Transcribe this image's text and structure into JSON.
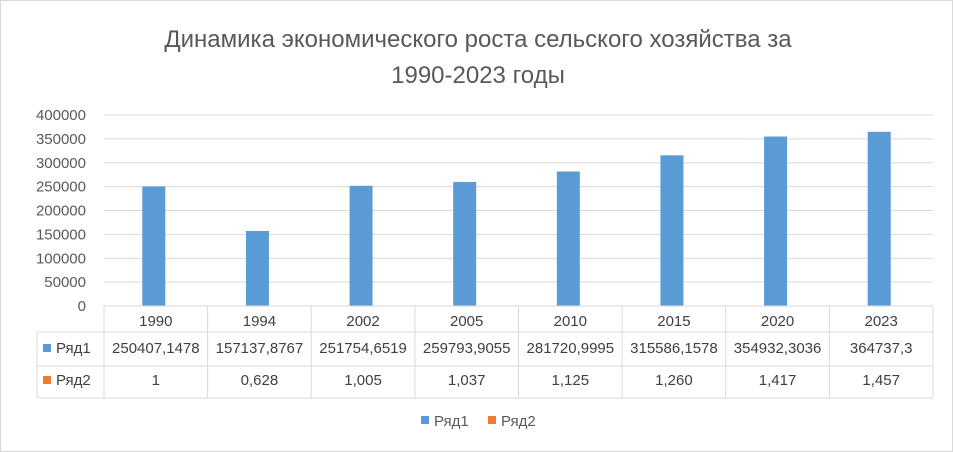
{
  "chart_data": {
    "type": "bar",
    "title": "Динамика экономического роста сельского хозяйства за 1990-2023 годы",
    "title_lines": [
      "Динамика экономического роста сельского хозяйства за",
      "1990-2023 годы"
    ],
    "categories": [
      "1990",
      "1994",
      "2002",
      "2005",
      "2010",
      "2015",
      "2020",
      "2023"
    ],
    "series": [
      {
        "name": "Ряд1",
        "color": "#5b9bd5",
        "values": [
          250407.1478,
          157137.8767,
          251754.6519,
          259793.9055,
          281720.9995,
          315586.1578,
          354932.3036,
          364737.3
        ],
        "labels": [
          "250407,1478",
          "157137,8767",
          "251754,6519",
          "259793,9055",
          "281720,9995",
          "315586,1578",
          "354932,3036",
          "364737,3"
        ]
      },
      {
        "name": "Ряд2",
        "color": "#ed7d31",
        "values": [
          1,
          0.628,
          1.005,
          1.037,
          1.125,
          1.26,
          1.417,
          1.457
        ],
        "labels": [
          "1",
          "0,628",
          "1,005",
          "1,037",
          "1,125",
          "1,260",
          "1,417",
          "1,457"
        ]
      }
    ],
    "ylim": [
      0,
      400000
    ],
    "yticks": [
      0,
      50000,
      100000,
      150000,
      200000,
      250000,
      300000,
      350000,
      400000
    ],
    "grid": true,
    "legend": "bottom",
    "data_table": true
  }
}
